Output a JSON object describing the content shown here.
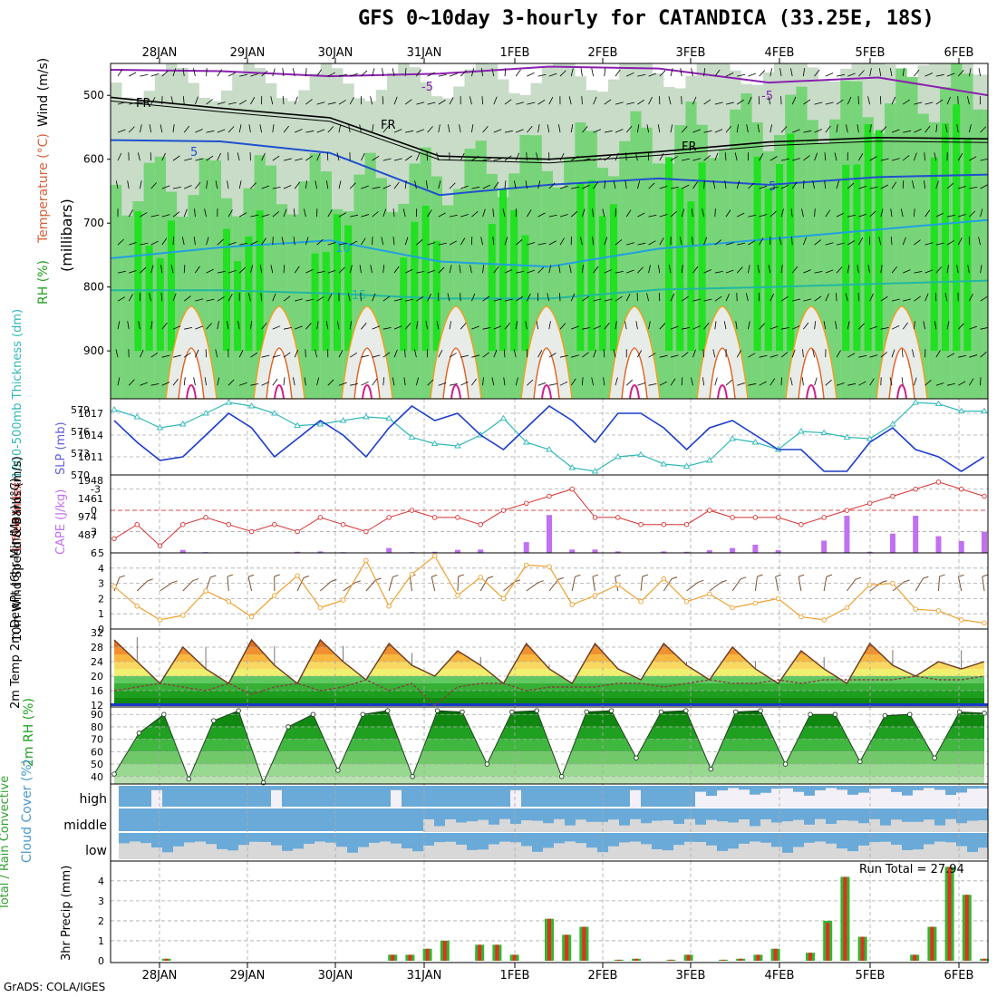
{
  "title": "GFS 0~10day 3-hourly for CATANDICA (33.25E, 18S)",
  "credit": "GrADS: COLA/IGES",
  "days": [
    "28JAN",
    "29JAN",
    "30JAN",
    "31JAN",
    "1FEB",
    "2FEB",
    "3FEB",
    "4FEB",
    "5FEB",
    "6FEB"
  ],
  "colors": {
    "rh_light": "#e0e8e0",
    "rh_mid": "#c8dcc8",
    "rh_green": "#78d478",
    "rh_bright": "#22e022",
    "temp_neg5": "#8a20b0",
    "temp_5": "#2050d0",
    "temp_10": "#20a0e0",
    "temp_15": "#20b8a0",
    "temp_20": "#f0a020",
    "slp": "#1c3cc8",
    "thickness": "#30b8b8",
    "lifted": "#d83030",
    "cape": "#c070f0",
    "wind_speed": "#f0a030",
    "wind_barb": "#7a5030",
    "cloud_blue": "#6aaad8",
    "cloud_white": "#f4f0f8",
    "cloud_grey": "#d8d8d8",
    "precip_green": "#30b830",
    "precip_red": "#e03020"
  },
  "chart_data": [
    {
      "id": "upper_air",
      "type": "heatmap",
      "ylabel_parts": [
        "RH (%)",
        "Temperature (°C)",
        "Wind (m/s)"
      ],
      "ylabel_mb": "(millibars)",
      "y_ticks": [
        "500",
        "600",
        "700",
        "800",
        "900"
      ],
      "contour_labels": [
        "-5",
        "FR",
        "5",
        "10",
        "15"
      ],
      "temperature_contours": [
        {
          "label": "-5",
          "values": [
            460,
            462,
            470,
            466,
            455,
            458,
            480,
            472,
            500
          ]
        },
        {
          "label": "FR",
          "values": [
            503,
            520,
            535,
            595,
            600,
            588,
            573,
            566,
            568
          ]
        },
        {
          "label": "5",
          "values": [
            570,
            572,
            590,
            656,
            640,
            630,
            640,
            628,
            624
          ]
        },
        {
          "label": "10",
          "values": [
            755,
            738,
            727,
            760,
            768,
            740,
            725,
            710,
            695
          ]
        },
        {
          "label": "15",
          "values": [
            805,
            805,
            810,
            818,
            818,
            804,
            800,
            795,
            790
          ]
        }
      ]
    },
    {
      "id": "slp_thickness",
      "type": "line",
      "ylabel_left": "1000-500mb Thickness (dm)",
      "ylabel_right": "SLP (mb)",
      "thickness_ticks": [
        "579",
        "576",
        "573",
        "570"
      ],
      "slp_ticks": [
        "1017",
        "1014",
        "1011"
      ],
      "slp": [
        1016,
        1013,
        1010.5,
        1011,
        1014,
        1017,
        1015,
        1011,
        1013.5,
        1016,
        1014,
        1011,
        1015,
        1018,
        1016,
        1017,
        1014,
        1012,
        1015,
        1018,
        1016,
        1013,
        1017,
        1017,
        1015,
        1012,
        1015,
        1016,
        1014,
        1012,
        1012,
        1009,
        1009,
        1013,
        1015,
        1012,
        1011,
        1009,
        1011
      ],
      "thickness": [
        579,
        578,
        576.5,
        577,
        578.5,
        580,
        579.5,
        578.5,
        576.8,
        577,
        577.5,
        578,
        577.8,
        575.2,
        574.3,
        574,
        575.5,
        577.8,
        574.5,
        573.5,
        571,
        570.5,
        572.5,
        572.8,
        571.5,
        571.2,
        572,
        575,
        574.5,
        573.5,
        576,
        575.8,
        575.2,
        575,
        577,
        580,
        579.8,
        578.8,
        578.8
      ]
    },
    {
      "id": "cape_lifted",
      "type": "bar",
      "ylabel_left": "Lifted Index",
      "ylabel_right": "CAPE (J/kg)",
      "li_ticks": [
        "-3",
        "0",
        "3",
        "6"
      ],
      "cape_ticks": [
        "1948",
        "1461",
        "974",
        "487"
      ],
      "lifted": [
        4,
        2,
        5,
        2,
        1,
        2,
        3,
        2,
        3,
        1,
        2,
        3,
        1,
        0,
        1,
        1,
        2,
        0,
        -1,
        -2,
        -3,
        1,
        1,
        2,
        2,
        2,
        0,
        1,
        1,
        1,
        2,
        1,
        0,
        -1,
        -2,
        -3,
        -4,
        -3,
        -2
      ],
      "cape": [
        0,
        0,
        10,
        80,
        20,
        10,
        0,
        10,
        30,
        40,
        20,
        10,
        130,
        20,
        30,
        80,
        90,
        0,
        290,
        1020,
        90,
        90,
        40,
        10,
        40,
        30,
        70,
        130,
        220,
        70,
        10,
        330,
        1000,
        30,
        520,
        1000,
        450,
        320,
        570
      ]
    },
    {
      "id": "wind10m",
      "type": "line",
      "ylabel": "10m Wind Speed & Barbs (m/s)",
      "y_ticks": [
        "0",
        "1",
        "2",
        "3",
        "4",
        "5"
      ],
      "ylim": [
        0,
        5
      ],
      "speed": [
        2.8,
        1.5,
        0.6,
        0.9,
        2.5,
        1.8,
        0.8,
        2.2,
        3.5,
        1.4,
        1.9,
        4.5,
        1.5,
        3.6,
        4.8,
        2.2,
        3.4,
        2.0,
        4.2,
        4.1,
        1.6,
        2.2,
        2.9,
        1.8,
        3.3,
        1.8,
        2.3,
        1.4,
        1.7,
        2.0,
        0.8,
        0.6,
        1.4,
        2.9,
        3.0,
        1.3,
        1.2,
        0.6,
        0.4
      ]
    },
    {
      "id": "temp2m",
      "type": "area",
      "ylabel": "2m Temp 2m DewPt (6hr Min/Max) (°C)",
      "y_ticks": [
        "12",
        "16",
        "20",
        "24",
        "28",
        "32"
      ],
      "ylim": [
        12,
        32
      ],
      "temp": [
        30,
        24,
        18,
        28,
        22,
        18,
        30,
        23,
        18,
        30,
        24,
        19,
        29,
        23,
        20,
        27,
        23,
        18,
        29,
        22,
        18,
        29,
        22,
        19,
        29,
        23,
        19,
        28,
        22,
        18,
        27,
        22,
        18,
        29,
        23,
        20,
        24,
        22,
        24
      ],
      "dewpoint": [
        16,
        17,
        18,
        17,
        16,
        18,
        15,
        17,
        18,
        16,
        17,
        19,
        16,
        18,
        12,
        17,
        18,
        18,
        16,
        17,
        17,
        17,
        18,
        18,
        17,
        18,
        19,
        18,
        18,
        19,
        18,
        19,
        19,
        19,
        19,
        20,
        19,
        19,
        20
      ]
    },
    {
      "id": "rh2m",
      "type": "area",
      "ylabel": "2m RH (%)",
      "y_ticks": [
        "40",
        "50",
        "60",
        "70",
        "80",
        "90"
      ],
      "ylim": [
        34,
        96
      ],
      "rh": [
        42,
        75,
        90,
        38,
        85,
        93,
        35,
        80,
        90,
        45,
        90,
        93,
        40,
        93,
        92,
        50,
        92,
        93,
        40,
        92,
        93,
        55,
        92,
        93,
        46,
        92,
        93,
        50,
        90,
        90,
        52,
        89,
        90,
        55,
        92,
        91
      ]
    },
    {
      "id": "cloud_cover",
      "type": "heatmap",
      "ylabel": "Cloud Cover (%)",
      "levels": [
        "high",
        "middle",
        "low"
      ]
    },
    {
      "id": "precip",
      "type": "bar",
      "ylabel_left": "Total / Rain Convective",
      "ylabel_right": "3hr Precip (mm)",
      "y_ticks": [
        "0",
        "1",
        "2",
        "3",
        "4"
      ],
      "ylim": [
        0,
        4.9
      ],
      "run_total": "Run Total = 27.94",
      "total": [
        0,
        0,
        0,
        0.1,
        0,
        0,
        0,
        0,
        0,
        0,
        0,
        0,
        0,
        0,
        0,
        0,
        0.3,
        0.3,
        0.6,
        1.0,
        0,
        0.8,
        0.8,
        0.3,
        0,
        2.1,
        1.3,
        1.7,
        0,
        0.05,
        0.1,
        0,
        0.05,
        0.3,
        0,
        0.05,
        0.1,
        0.3,
        0.6,
        0,
        0.4,
        2.0,
        4.2,
        1.2,
        0,
        0,
        0.3,
        1.7,
        4.7,
        3.3,
        0.1
      ],
      "convective": [
        0,
        0,
        0,
        0.1,
        0,
        0,
        0,
        0,
        0,
        0,
        0,
        0,
        0,
        0,
        0,
        0,
        0.3,
        0.3,
        0.6,
        1.0,
        0,
        0.8,
        0.8,
        0.3,
        0,
        2.1,
        1.3,
        1.7,
        0,
        0.05,
        0.1,
        0,
        0.05,
        0.3,
        0,
        0.05,
        0.1,
        0.3,
        0.6,
        0,
        0.4,
        1.9,
        4.2,
        1.2,
        0,
        0,
        0.3,
        1.7,
        4.7,
        3.3,
        0.1
      ]
    }
  ]
}
